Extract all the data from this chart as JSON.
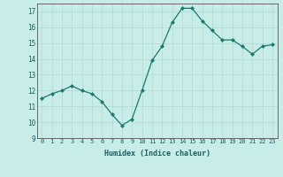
{
  "x": [
    0,
    1,
    2,
    3,
    4,
    5,
    6,
    7,
    8,
    9,
    10,
    11,
    12,
    13,
    14,
    15,
    16,
    17,
    18,
    19,
    20,
    21,
    22,
    23
  ],
  "y": [
    11.5,
    11.8,
    12.0,
    12.3,
    12.0,
    11.8,
    11.3,
    10.5,
    9.8,
    10.2,
    12.0,
    13.9,
    14.8,
    16.3,
    17.2,
    17.2,
    16.4,
    15.8,
    15.2,
    15.2,
    14.8,
    14.3,
    14.8,
    14.9
  ],
  "xlabel": "Humidex (Indice chaleur)",
  "ylim": [
    9,
    17.5
  ],
  "xlim": [
    -0.5,
    23.5
  ],
  "yticks": [
    9,
    10,
    11,
    12,
    13,
    14,
    15,
    16,
    17
  ],
  "xticks": [
    0,
    1,
    2,
    3,
    4,
    5,
    6,
    7,
    8,
    9,
    10,
    11,
    12,
    13,
    14,
    15,
    16,
    17,
    18,
    19,
    20,
    21,
    22,
    23
  ],
  "line_color": "#1a7a6e",
  "marker_color": "#1a7a6e",
  "bg_color": "#c8ece8",
  "grid_color": "#b0d8d4",
  "text_color": "#1a6060",
  "xlabel_color": "#1a6060"
}
